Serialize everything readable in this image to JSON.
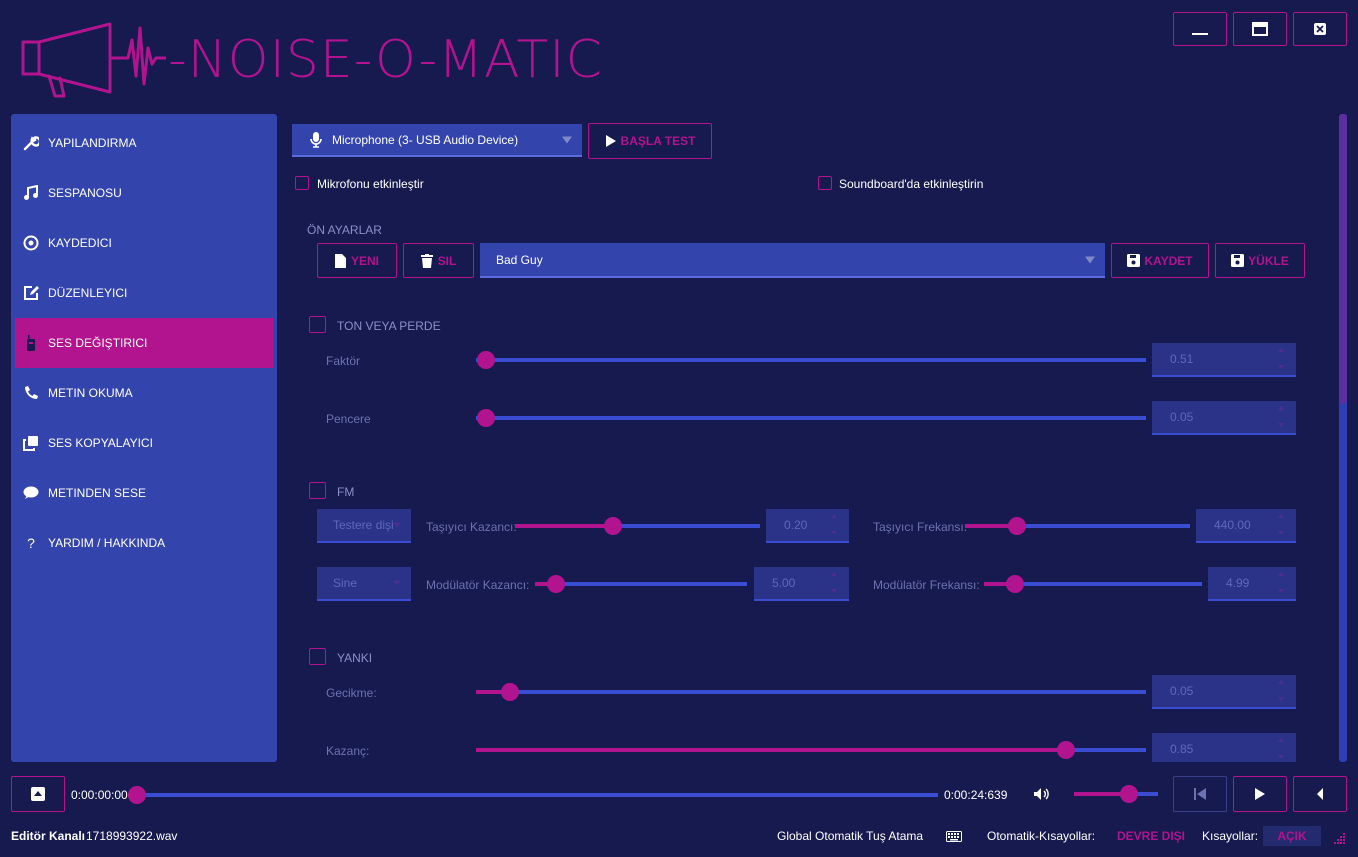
{
  "app": {
    "title": "-NOISE-O-MATIC"
  },
  "sidebar": {
    "items": [
      {
        "label": "YAPILANDIRMA",
        "icon": "wrench-icon",
        "active": false
      },
      {
        "label": "SESPANOSU",
        "icon": "music-note-icon",
        "active": false
      },
      {
        "label": "KAYDEDICI",
        "icon": "record-disc-icon",
        "active": false
      },
      {
        "label": "DÜZENLEYICI",
        "icon": "edit-icon",
        "active": false
      },
      {
        "label": "SES DEĞIŞTIRICI",
        "icon": "walkie-talkie-icon",
        "active": true
      },
      {
        "label": "METIN OKUMA",
        "icon": "phone-icon",
        "active": false
      },
      {
        "label": "SES KOPYALAYICI",
        "icon": "copy-icon",
        "active": false
      },
      {
        "label": "METINDEN SESE",
        "icon": "chat-bubble-icon",
        "active": false
      },
      {
        "label": "YARDIM / HAKKINDA",
        "icon": "question-icon",
        "active": false
      }
    ]
  },
  "main": {
    "mic_select": "Microphone (3- USB Audio Device)",
    "start_test_label": "BAŞLA TEST",
    "enable_mic_label": "Mikrofonu etkinleştir",
    "enable_soundboard_label": "Soundboard'da etkinleştirin",
    "presets": {
      "title": "ÖN AYARLAR",
      "new_label": "YENI",
      "delete_label": "SIL",
      "selected": "Bad Guy",
      "save_label": "KAYDET",
      "load_label": "YÜKLE"
    },
    "pitch": {
      "title": "TON VEYA PERDE",
      "factor_label": "Faktör",
      "factor_value": "0.51",
      "factor_level": 0.015,
      "window_label": "Pencere",
      "window_value": "0.05",
      "window_level": 0.015
    },
    "fm": {
      "title": "FM",
      "carrier_wave": "Testere dişi",
      "carrier_gain_label": "Taşıyıcı Kazancı:",
      "carrier_gain_value": "0.20",
      "carrier_gain_level": 0.4,
      "carrier_freq_label": "Taşıyıcı Frekansı:",
      "carrier_freq_value": "440.00",
      "carrier_freq_level": 0.23,
      "mod_wave": "Sine",
      "mod_gain_label": "Modülatör Kazancı:",
      "mod_gain_value": "5.00",
      "mod_gain_level": 0.1,
      "mod_freq_label": "Modülatör Frekansı:",
      "mod_freq_value": "4.99",
      "mod_freq_level": 0.14
    },
    "echo": {
      "title": "YANKI",
      "delay_label": "Gecikme:",
      "delay_value": "0.05",
      "delay_level": 0.05,
      "gain_label": "Kazanç:",
      "gain_value": "0.85",
      "gain_level": 0.88
    }
  },
  "player": {
    "current_time": "0:00:00:000",
    "total_time": "0:00:24:639",
    "progress": 0.0,
    "volume": 0.65
  },
  "status": {
    "channel_label": "Editör Kanalı",
    "file": "1718993922.wav",
    "global_hotkey_label": "Global Otomatik Tuş Atama",
    "auto_shortcuts_label": "Otomatik-Kısayollar:",
    "auto_shortcuts_value": "DEVRE DIŞI",
    "shortcuts_label": "Kısayollar:",
    "shortcuts_value": "AÇIK"
  },
  "colors": {
    "accent": "#b1148e",
    "panel": "#3444ad",
    "background": "#161a4f",
    "track": "#3a4cd1"
  }
}
